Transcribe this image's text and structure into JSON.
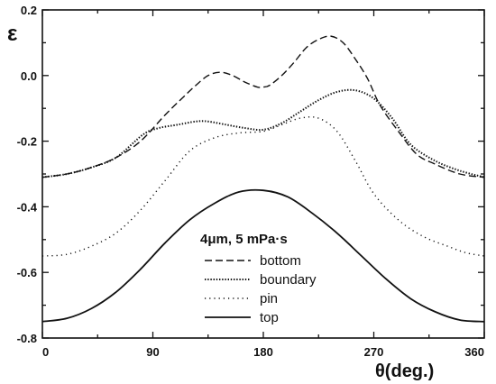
{
  "chart_data": {
    "type": "line",
    "xlabel": "θ(deg.)",
    "ylabel": "ε",
    "xlim": [
      0,
      360
    ],
    "ylim": [
      -0.8,
      0.2
    ],
    "xticks": [
      0,
      90,
      180,
      270,
      360
    ],
    "yticks": [
      0.2,
      0.0,
      -0.2,
      -0.4,
      -0.6,
      -0.8
    ],
    "yticklabels": [
      "0.2",
      "0.0",
      "-0.2",
      "-0.4",
      "-0.6",
      "-0.8"
    ],
    "grid": false,
    "legend_position": "center-right",
    "legend_title": "4μm, 5 mPa·s",
    "series": [
      {
        "name": "bottom",
        "style": "dashed",
        "x": [
          0,
          20,
          40,
          60,
          80,
          100,
          115,
          125,
          135,
          145,
          155,
          165,
          175,
          180,
          185,
          195,
          205,
          215,
          225,
          235,
          245,
          255,
          265,
          275,
          290,
          305,
          320,
          340,
          360
        ],
        "y": [
          -0.31,
          -0.3,
          -0.28,
          -0.25,
          -0.2,
          -0.12,
          -0.065,
          -0.03,
          0.0,
          0.01,
          0.0,
          -0.02,
          -0.035,
          -0.035,
          -0.03,
          0.0,
          0.04,
          0.085,
          0.11,
          0.12,
          0.1,
          0.05,
          -0.01,
          -0.09,
          -0.17,
          -0.24,
          -0.27,
          -0.3,
          -0.31
        ]
      },
      {
        "name": "boundary",
        "style": "dotted",
        "x": [
          0,
          20,
          40,
          60,
          82,
          95,
          110,
          125,
          135,
          150,
          165,
          180,
          195,
          210,
          225,
          240,
          255,
          270,
          285,
          300,
          320,
          340,
          360
        ],
        "y": [
          -0.31,
          -0.3,
          -0.28,
          -0.25,
          -0.18,
          -0.16,
          -0.15,
          -0.14,
          -0.14,
          -0.15,
          -0.16,
          -0.165,
          -0.145,
          -0.11,
          -0.075,
          -0.05,
          -0.045,
          -0.07,
          -0.13,
          -0.21,
          -0.26,
          -0.29,
          -0.31
        ]
      },
      {
        "name": "pin",
        "style": "dotted-fine",
        "x": [
          0,
          20,
          40,
          60,
          80,
          100,
          120,
          140,
          160,
          180,
          195,
          210,
          225,
          240,
          255,
          270,
          290,
          310,
          330,
          345,
          360
        ],
        "y": [
          -0.55,
          -0.545,
          -0.52,
          -0.48,
          -0.41,
          -0.32,
          -0.23,
          -0.19,
          -0.175,
          -0.17,
          -0.15,
          -0.13,
          -0.13,
          -0.17,
          -0.26,
          -0.36,
          -0.44,
          -0.49,
          -0.52,
          -0.54,
          -0.55
        ]
      },
      {
        "name": "top",
        "style": "solid",
        "x": [
          0,
          20,
          40,
          60,
          80,
          100,
          120,
          140,
          160,
          180,
          200,
          220,
          240,
          260,
          280,
          300,
          320,
          340,
          360
        ],
        "y": [
          -0.75,
          -0.74,
          -0.71,
          -0.66,
          -0.59,
          -0.51,
          -0.44,
          -0.39,
          -0.355,
          -0.35,
          -0.37,
          -0.42,
          -0.48,
          -0.55,
          -0.62,
          -0.68,
          -0.72,
          -0.745,
          -0.75
        ]
      }
    ]
  }
}
